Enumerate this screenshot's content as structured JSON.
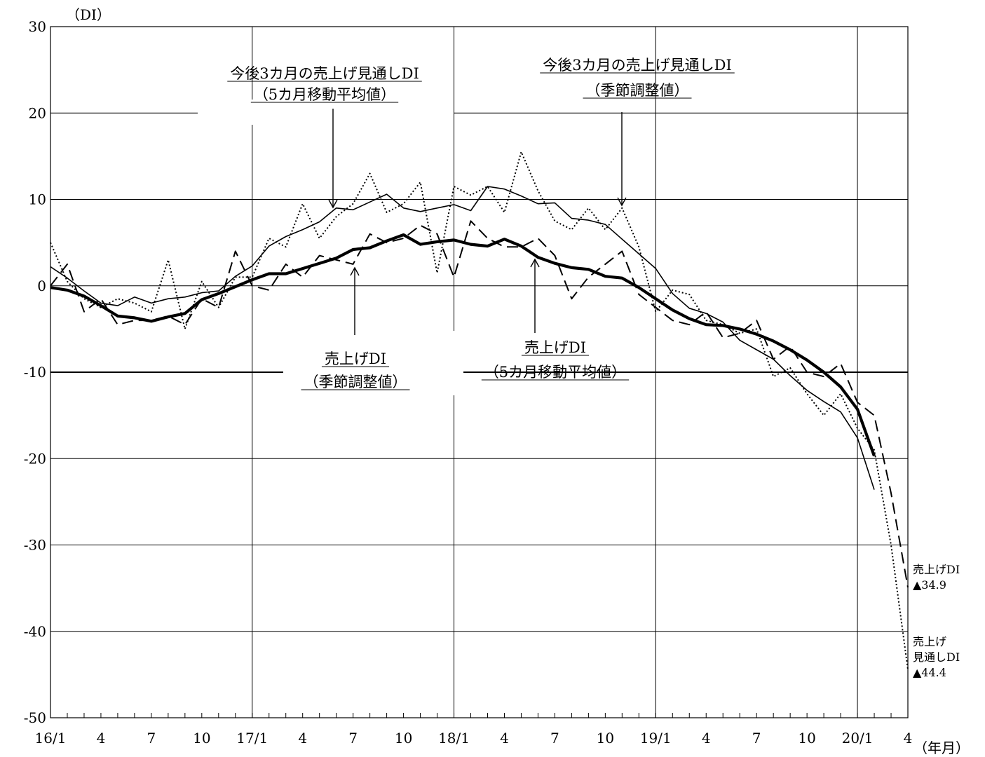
{
  "chart_data": {
    "type": "line",
    "ylabel": "（DI）",
    "xlabel": "（年月）",
    "ylim": [
      -50,
      30
    ],
    "yticks": [
      "30",
      "20",
      "10",
      "0",
      "-10",
      "-20",
      "-30",
      "-40",
      "-50"
    ],
    "xticks": [
      "16/1",
      "4",
      "7",
      "10",
      "17/1",
      "4",
      "7",
      "10",
      "18/1",
      "4",
      "7",
      "10",
      "19/1",
      "4",
      "7",
      "10",
      "20/1",
      "4"
    ],
    "x": [
      "16/1",
      "16/2",
      "16/3",
      "16/4",
      "16/5",
      "16/6",
      "16/7",
      "16/8",
      "16/9",
      "16/10",
      "16/11",
      "16/12",
      "17/1",
      "17/2",
      "17/3",
      "17/4",
      "17/5",
      "17/6",
      "17/7",
      "17/8",
      "17/9",
      "17/10",
      "17/11",
      "17/12",
      "18/1",
      "18/2",
      "18/3",
      "18/4",
      "18/5",
      "18/6",
      "18/7",
      "18/8",
      "18/9",
      "18/10",
      "18/11",
      "18/12",
      "19/1",
      "19/2",
      "19/3",
      "19/4",
      "19/5",
      "19/6",
      "19/7",
      "19/8",
      "19/9",
      "19/10",
      "19/11",
      "19/12",
      "20/1",
      "20/2",
      "20/3",
      "20/4"
    ],
    "series": [
      {
        "name": "今後3カ月の売上げ見通しDI（季節調整値）",
        "style": "dotted",
        "values": [
          5.0,
          0.5,
          -1.5,
          -2.5,
          -1.5,
          -2.0,
          -3.0,
          3.0,
          -5.0,
          0.5,
          -2.5,
          1.0,
          1.0,
          5.5,
          4.5,
          9.5,
          5.5,
          8.0,
          9.5,
          13.0,
          8.5,
          9.5,
          12.0,
          1.5,
          11.5,
          10.5,
          11.5,
          8.5,
          15.5,
          11.0,
          7.5,
          6.5,
          9.0,
          6.5,
          9.0,
          4.5,
          -3.0,
          -0.5,
          -1.0,
          -4.0,
          -4.5,
          -5.5,
          -5.0,
          -10.5,
          -9.5,
          -12.5,
          -15.0,
          -12.5,
          -16.5,
          -19.0,
          -30.0,
          -44.4
        ]
      },
      {
        "name": "今後3カ月の売上げ見通しDI（5カ月移動平均値）",
        "style": "thin-solid",
        "values": [
          2.2,
          0.9,
          -0.6,
          -2.0,
          -2.3,
          -1.3,
          -2.0,
          -1.5,
          -1.3,
          -0.8,
          -0.6,
          1.1,
          2.3,
          4.6,
          5.7,
          6.5,
          7.4,
          9.0,
          8.8,
          9.7,
          10.6,
          9.0,
          8.6,
          9.0,
          9.4,
          8.7,
          11.5,
          11.2,
          10.4,
          9.5,
          9.6,
          7.8,
          7.6,
          7.1,
          5.4,
          3.7,
          2.0,
          -0.9,
          -2.6,
          -3.2,
          -4.2,
          -6.3,
          -7.4,
          -8.5,
          -10.4,
          -12.1,
          -13.4,
          -14.6,
          -17.6,
          -23.6,
          null,
          null
        ]
      },
      {
        "name": "売上げDI（季節調整値）",
        "style": "dashed",
        "values": [
          0.0,
          2.5,
          -3.0,
          -1.5,
          -4.5,
          -4.0,
          -4.0,
          -3.5,
          -4.5,
          -1.5,
          -2.5,
          4.0,
          0.0,
          -0.5,
          2.5,
          1.0,
          3.5,
          3.0,
          2.5,
          6.0,
          5.0,
          5.5,
          7.0,
          6.0,
          1.0,
          7.5,
          5.5,
          4.5,
          4.5,
          5.5,
          3.5,
          -1.5,
          1.0,
          2.5,
          4.0,
          -1.0,
          -2.5,
          -4.0,
          -4.5,
          -3.0,
          -6.0,
          -5.5,
          -4.0,
          -8.5,
          -7.0,
          -10.0,
          -10.5,
          -9.0,
          -13.5,
          -15.0,
          -24.0,
          -34.9
        ]
      },
      {
        "name": "売上げDI（5カ月移動平均値）",
        "style": "thick-solid",
        "values": [
          -0.2,
          -0.5,
          -1.2,
          -2.3,
          -3.5,
          -3.7,
          -4.1,
          -3.6,
          -3.2,
          -1.6,
          -0.9,
          -0.1,
          0.7,
          1.4,
          1.4,
          2.0,
          2.6,
          3.2,
          4.2,
          4.4,
          5.2,
          5.9,
          4.8,
          5.1,
          5.3,
          4.8,
          4.6,
          5.4,
          4.6,
          3.3,
          2.6,
          2.1,
          1.9,
          1.1,
          0.9,
          -0.2,
          -1.5,
          -2.8,
          -3.8,
          -4.5,
          -4.6,
          -5.0,
          -5.6,
          -6.4,
          -7.4,
          -8.6,
          -10.0,
          -11.7,
          -14.3,
          -19.7,
          null,
          null
        ]
      }
    ],
    "annotations": [
      {
        "lines": [
          "今後3カ月の売上げ見通しDI",
          "（5カ月移動平均値）"
        ]
      },
      {
        "lines": [
          "今後3カ月の売上げ見通しDI",
          "（季節調整値）"
        ]
      },
      {
        "lines": [
          "売上げDI",
          "（季節調整値）"
        ]
      },
      {
        "lines": [
          "売上げDI",
          "（5カ月移動平均値）"
        ]
      }
    ],
    "end_labels": [
      {
        "lines": [
          "売上げDI",
          "▲34.9"
        ]
      },
      {
        "lines": [
          "売上げ",
          "見通しDI",
          "▲44.4"
        ]
      }
    ],
    "grid": true
  }
}
